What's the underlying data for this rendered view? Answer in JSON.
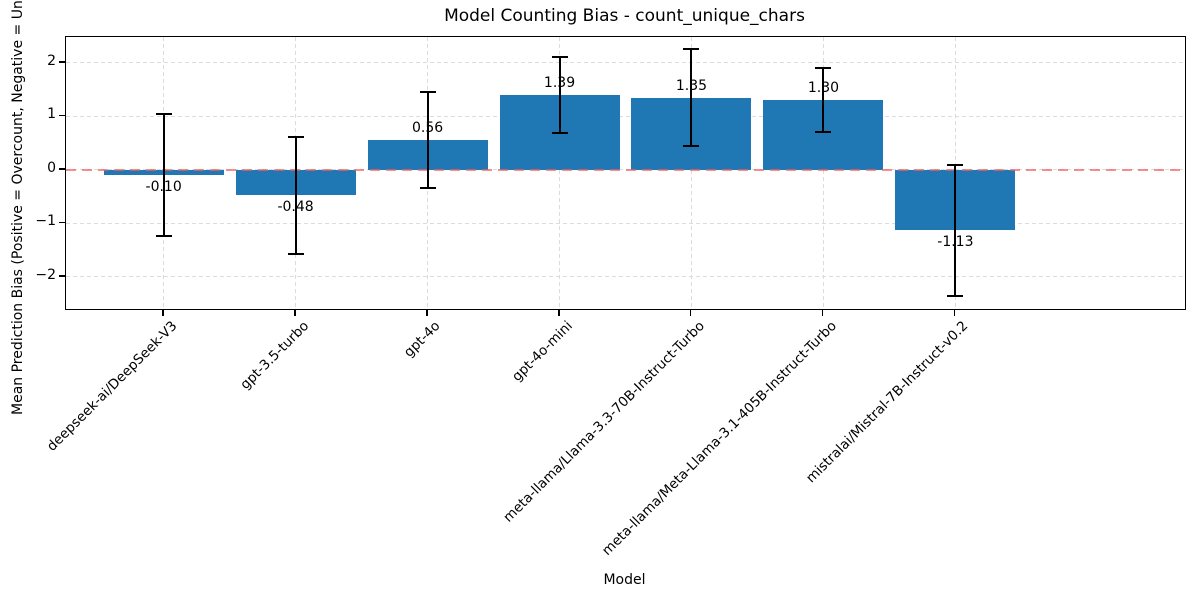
{
  "chart_data": {
    "type": "bar",
    "title": "Model Counting Bias - count_unique_chars",
    "xlabel": "Model",
    "ylabel": "Mean Prediction Bias (Positive = Overcount, Negative = Undercount)",
    "categories": [
      "deepseek-ai/DeepSeek-V3",
      "gpt-3.5-turbo",
      "gpt-4o",
      "gpt-4o-mini",
      "meta-llama/Llama-3.3-70B-Instruct-Turbo",
      "meta-llama/Meta-Llama-3.1-405B-Instruct-Turbo",
      "mistralai/Mistral-7B-Instruct-v0.2"
    ],
    "values": [
      -0.1,
      -0.48,
      0.56,
      1.39,
      1.35,
      1.3,
      -1.13
    ],
    "errors": [
      1.14,
      1.1,
      0.9,
      0.71,
      0.9,
      0.6,
      1.22
    ],
    "bar_labels": [
      "-0.10",
      "-0.48",
      "0.56",
      "1.39",
      "1.35",
      "1.30",
      "-1.13"
    ],
    "y_ticks": [
      -2,
      -1,
      0,
      1,
      2
    ],
    "y_tick_labels": [
      "−2",
      "−1",
      "0",
      "1",
      "2"
    ],
    "ylim": [
      -2.6,
      2.48
    ],
    "grid": true,
    "legend": "none",
    "bar_color": "#1f77b4",
    "error_color": "#000000",
    "zero_line_color": "#f25f5f",
    "zero_line_y": 0
  }
}
